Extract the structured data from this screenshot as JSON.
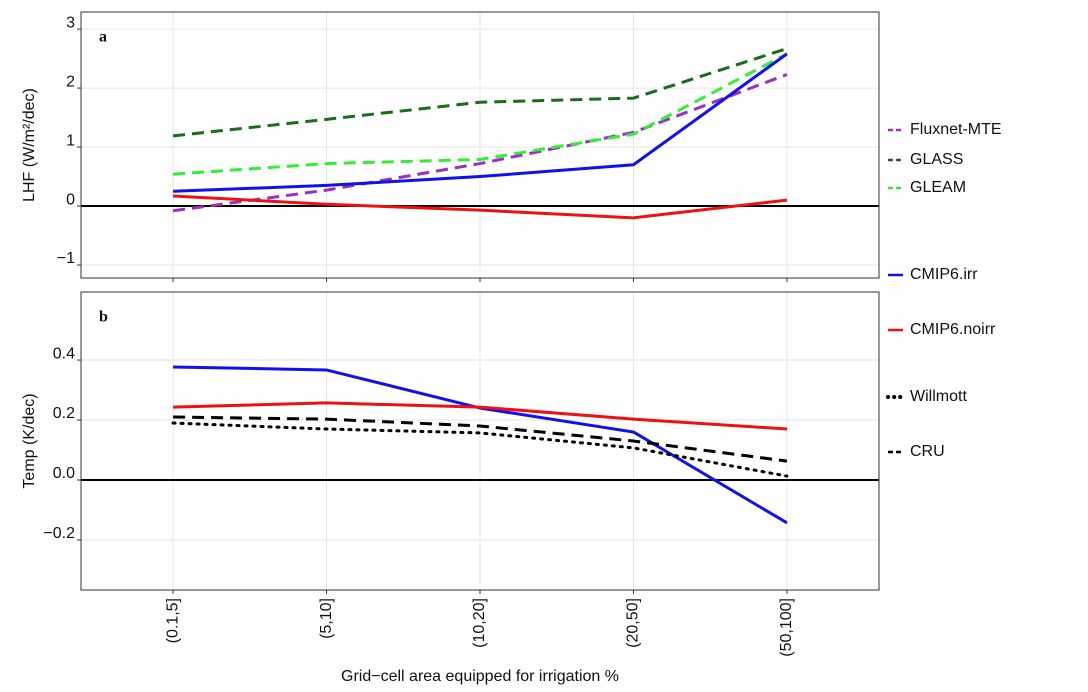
{
  "chart_data": [
    {
      "type": "line",
      "panel_label": "a",
      "ylabel": "LHF (W/m²/dec)",
      "categories": [
        null,
        null,
        null,
        null,
        null
      ],
      "ylim": [
        -1.22,
        3.29
      ],
      "yticks": [
        {
          "value": -1,
          "label": "−1"
        },
        0,
        1,
        2,
        3
      ],
      "grid": true,
      "zero_line": true,
      "series": [
        {
          "name": "Fluxnet-MTE",
          "color": "#9a2fc4",
          "dash": "dashed",
          "values": [
            -0.08,
            0.27,
            0.72,
            1.25,
            2.23
          ]
        },
        {
          "name": "GLASS",
          "color": "#1a6b1a",
          "dash": "dashed",
          "values": [
            1.19,
            1.47,
            1.76,
            1.83,
            2.67
          ]
        },
        {
          "name": "GLEAM",
          "color": "#33ee33",
          "dash": "dashed",
          "values": [
            0.54,
            0.72,
            0.79,
            1.22,
            2.58
          ]
        },
        {
          "name": "CMIP6.irr",
          "color": "#1111ee",
          "dash": "solid",
          "values": [
            0.25,
            0.35,
            0.5,
            0.7,
            2.58
          ]
        },
        {
          "name": "CMIP6.noirr",
          "color": "#ee1111",
          "dash": "solid",
          "values": [
            0.17,
            0.03,
            -0.07,
            -0.2,
            0.1
          ]
        }
      ]
    },
    {
      "type": "line",
      "panel_label": "b",
      "ylabel": "Temp (K/dec)",
      "xlabel": "Grid−cell area equipped for irrigation %",
      "categories": [
        "(0.1,5]",
        "(5,10]",
        "(10,20]",
        "(20,50]",
        "(50,100]"
      ],
      "ylim": [
        -0.367,
        0.627
      ],
      "yticks": [
        {
          "value": -0.2,
          "label": "−0.2"
        },
        {
          "value": 0,
          "label": "0.0"
        },
        0.2,
        0.4
      ],
      "grid": true,
      "zero_line": true,
      "series": [
        {
          "name": "CMIP6.irr",
          "color": "#1111ee",
          "dash": "solid",
          "values": [
            0.377,
            0.367,
            0.24,
            0.16,
            -0.143
          ]
        },
        {
          "name": "CMIP6.noirr",
          "color": "#ee1111",
          "dash": "solid",
          "values": [
            0.243,
            0.257,
            0.243,
            0.203,
            0.17
          ]
        },
        {
          "name": "Willmott",
          "color": "#000000",
          "dash": "dotted",
          "values": [
            0.19,
            0.17,
            0.157,
            0.107,
            0.013
          ]
        },
        {
          "name": "CRU",
          "color": "#000000",
          "dash": "dashed",
          "values": [
            0.21,
            0.203,
            0.18,
            0.13,
            0.063
          ]
        }
      ]
    }
  ]
}
